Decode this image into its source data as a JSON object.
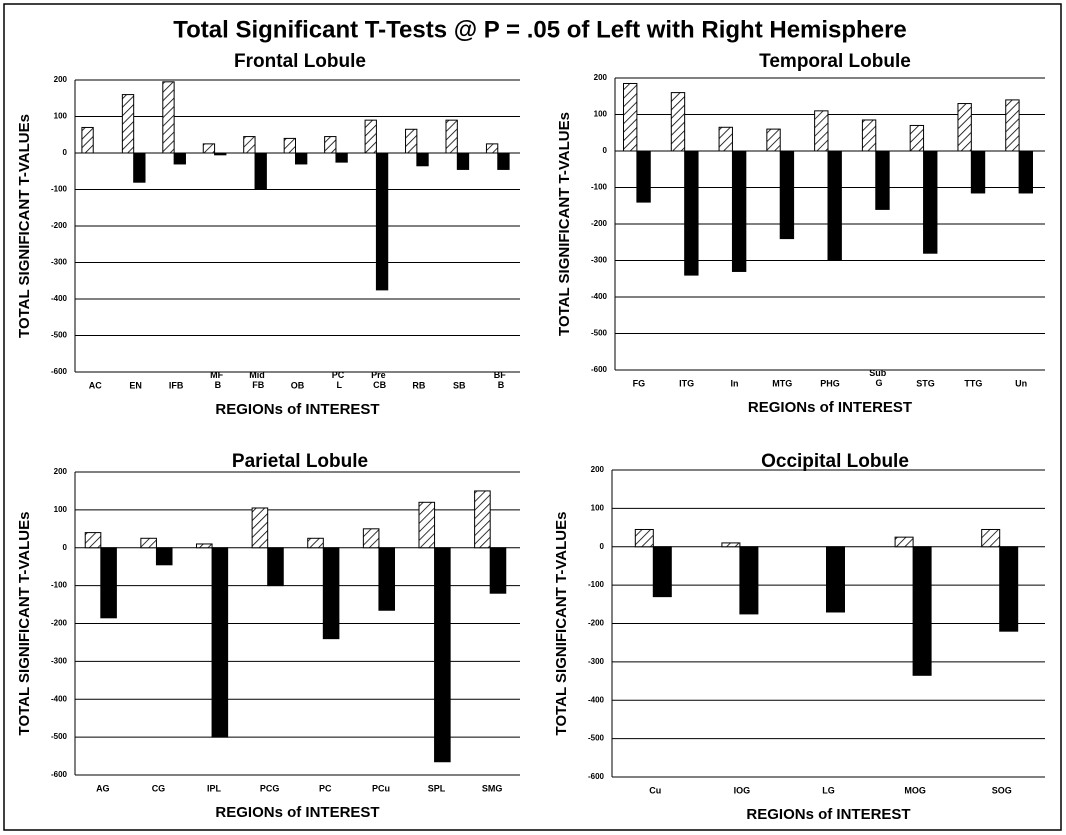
{
  "title": "Total Significant T-Tests @ P = .05 of Left with Right Hemisphere",
  "chart_data": [
    {
      "type": "bar",
      "title": "Frontal Lobule",
      "xlabel": "REGIONs of INTEREST",
      "ylabel": "TOTAL SIGNIFICANT T-VALUEs",
      "categories": [
        "AC",
        "EN",
        "IFB",
        "MF B",
        "Mid FB",
        "OB",
        "PC L",
        "Pre CB",
        "RB",
        "SB",
        "BF B"
      ],
      "series": [
        {
          "color": "#000000",
          "hatch": true,
          "values": [
            70,
            160,
            195,
            25,
            45,
            40,
            45,
            90,
            65,
            90,
            25
          ]
        },
        {
          "color": "#000000",
          "hatch": false,
          "values": [
            0,
            -80,
            -30,
            -5,
            -100,
            -30,
            -25,
            -375,
            -35,
            -45,
            -45
          ]
        }
      ],
      "ylim": [
        -600,
        200
      ],
      "yticks": [
        200,
        100,
        0,
        -100,
        -200,
        -300,
        -400,
        -500,
        -600
      ],
      "grid": true
    },
    {
      "type": "bar",
      "title": "Temporal Lobule",
      "xlabel": "REGIONs of INTEREST",
      "ylabel": "TOTAL SIGNIFICANT T-VALUEs",
      "categories": [
        "FG",
        "ITG",
        "In",
        "MTG",
        "PHG",
        "Sub G",
        "STG",
        "TTG",
        "Un"
      ],
      "series": [
        {
          "color": "#000000",
          "hatch": true,
          "values": [
            185,
            160,
            65,
            60,
            110,
            85,
            70,
            130,
            140
          ]
        },
        {
          "color": "#000000",
          "hatch": false,
          "values": [
            -140,
            -340,
            -330,
            -240,
            -300,
            -160,
            -280,
            -115,
            -115
          ]
        }
      ],
      "ylim": [
        -600,
        200
      ],
      "yticks": [
        200,
        100,
        0,
        -100,
        -200,
        -300,
        -400,
        -500,
        -600
      ],
      "grid": true
    },
    {
      "type": "bar",
      "title": "Parietal Lobule",
      "xlabel": "REGIONs of INTEREST",
      "ylabel": "TOTAL SIGNIFICANT T-VALUEs",
      "categories": [
        "AG",
        "CG",
        "IPL",
        "PCG",
        "PC",
        "PCu",
        "SPL",
        "SMG"
      ],
      "series": [
        {
          "color": "#000000",
          "hatch": true,
          "values": [
            40,
            25,
            10,
            105,
            25,
            50,
            120,
            150
          ]
        },
        {
          "color": "#000000",
          "hatch": false,
          "values": [
            -185,
            -45,
            -500,
            -100,
            -240,
            -165,
            -565,
            -120
          ]
        }
      ],
      "ylim": [
        -600,
        200
      ],
      "yticks": [
        200,
        100,
        0,
        -100,
        -200,
        -300,
        -400,
        -500,
        -600
      ],
      "grid": true
    },
    {
      "type": "bar",
      "title": "Occipital Lobule",
      "xlabel": "REGIONs of INTEREST",
      "ylabel": "TOTAL SIGNIFICANT T-VALUEs",
      "categories": [
        "Cu",
        "IOG",
        "LG",
        "MOG",
        "SOG"
      ],
      "series": [
        {
          "color": "#000000",
          "hatch": true,
          "values": [
            45,
            10,
            0,
            25,
            45
          ]
        },
        {
          "color": "#000000",
          "hatch": false,
          "values": [
            -130,
            -175,
            -170,
            -335,
            -220
          ]
        }
      ],
      "ylim": [
        -600,
        200
      ],
      "yticks": [
        200,
        100,
        0,
        -100,
        -200,
        -300,
        -400,
        -500,
        -600
      ],
      "grid": true
    }
  ]
}
